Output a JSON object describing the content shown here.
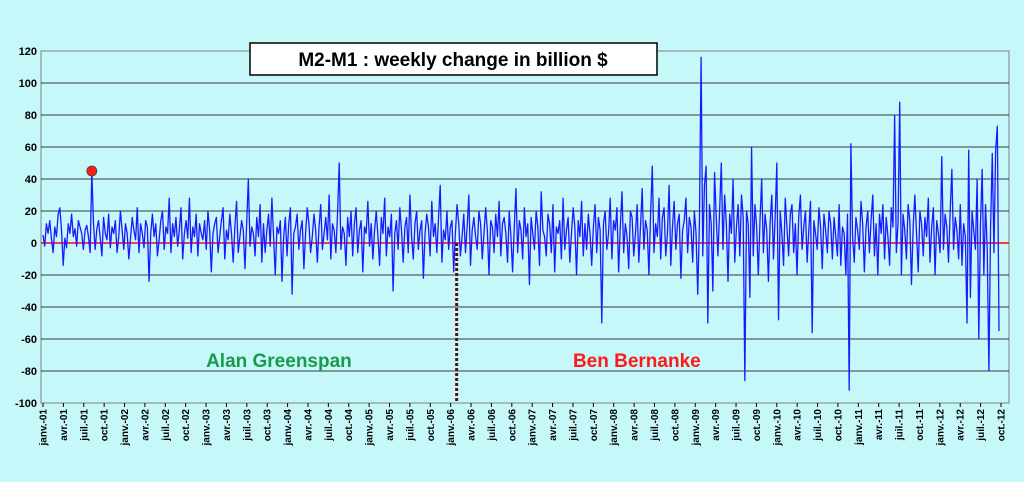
{
  "chart_data": {
    "type": "line",
    "title": "M2-M1  : weekly change in billion $",
    "ylim": [
      -100,
      120
    ],
    "y_ticks": [
      "120",
      "100",
      "80",
      "60",
      "40",
      "20",
      "0",
      "-20",
      "-40",
      "-60",
      "-80",
      "-100"
    ],
    "x_tick_labels": [
      "janv.-01",
      "avr.-01",
      "juil.-01",
      "oct.-01",
      "janv.-02",
      "avr.-02",
      "juil.-02",
      "oct.-02",
      "janv.-03",
      "avr.-03",
      "juil.-03",
      "oct.-03",
      "janv.-04",
      "avr.-04",
      "juil.-04",
      "oct.-04",
      "janv.-05",
      "avr.-05",
      "juil.-05",
      "oct.-05",
      "janv.-06",
      "avr.-06",
      "juil.-06",
      "oct.-06",
      "janv.-07",
      "avr.-07",
      "juil.-07",
      "oct.-07",
      "janv.-08",
      "avr.-08",
      "juil.-08",
      "oct.-08",
      "janv.-09",
      "avr.-09",
      "juil.-09",
      "oct.-09",
      "janv.-10",
      "avr.-10",
      "juil.-10",
      "oct.-10",
      "janv.-11",
      "avr.-11",
      "juil.-11",
      "oct.-11",
      "janv.-12",
      "avr.-12",
      "juil.-12",
      "oct.-12"
    ],
    "x_start": "2001-01",
    "grid": true,
    "zero_line_color": "#ff0000",
    "series_color": "#1a1aff",
    "series": [
      {
        "values": [
          5,
          -2,
          12,
          6,
          14,
          3,
          -6,
          10,
          4,
          18,
          22,
          8,
          -14,
          3,
          -3,
          12,
          6,
          18,
          4,
          9,
          -2,
          14,
          10,
          6,
          -4,
          8,
          11,
          4,
          -6,
          45,
          12,
          -4,
          9,
          14,
          3,
          -8,
          16,
          6,
          2,
          18,
          -3,
          10,
          6,
          14,
          -6,
          4,
          20,
          8,
          -4,
          12,
          6,
          -10,
          3,
          16,
          8,
          2,
          22,
          -6,
          12,
          6,
          -3,
          14,
          10,
          -24,
          6,
          18,
          4,
          12,
          -8,
          2,
          14,
          20,
          -4,
          10,
          6,
          28,
          -6,
          12,
          4,
          16,
          -2,
          8,
          22,
          -10,
          6,
          14,
          3,
          28,
          -6,
          10,
          4,
          18,
          -8,
          12,
          6,
          2,
          14,
          -4,
          20,
          8,
          -18,
          6,
          12,
          16,
          -6,
          4,
          14,
          22,
          -10,
          8,
          2,
          18,
          6,
          -12,
          10,
          26,
          -6,
          4,
          14,
          8,
          -16,
          12,
          40,
          -2,
          10,
          6,
          -8,
          16,
          4,
          24,
          -12,
          12,
          -6,
          8,
          18,
          -2,
          28,
          4,
          -20,
          10,
          6,
          14,
          -24,
          4,
          16,
          -8,
          12,
          22,
          -32,
          6,
          10,
          18,
          -4,
          8,
          14,
          -16,
          6,
          22,
          12,
          -6,
          4,
          18,
          8,
          -12,
          10,
          24,
          -4,
          6,
          16,
          2,
          30,
          -10,
          12,
          8,
          -6,
          18,
          50,
          -4,
          10,
          6,
          -14,
          16,
          4,
          20,
          -8,
          12,
          22,
          -6,
          8,
          14,
          -18,
          10,
          6,
          26,
          -2,
          12,
          -10,
          8,
          20,
          4,
          -14,
          16,
          6,
          28,
          -8,
          10,
          4,
          18,
          -30,
          6,
          14,
          -4,
          22,
          8,
          -12,
          10,
          16,
          -6,
          30,
          4,
          -10,
          12,
          20,
          -4,
          8,
          14,
          -22,
          6,
          18,
          10,
          -8,
          26,
          4,
          12,
          -6,
          16,
          36,
          -12,
          8,
          2,
          20,
          -4,
          10,
          14,
          -18,
          6,
          24,
          12,
          -8,
          4,
          18,
          -6,
          10,
          30,
          -14,
          8,
          16,
          4,
          -4,
          20,
          12,
          -10,
          6,
          22,
          8,
          -20,
          14,
          10,
          -6,
          18,
          4,
          26,
          -8,
          12,
          16,
          6,
          -12,
          20,
          4,
          -18,
          10,
          34,
          -6,
          14,
          8,
          -10,
          22,
          4,
          12,
          -26,
          16,
          6,
          -4,
          20,
          10,
          -14,
          32,
          8,
          4,
          -8,
          18,
          12,
          -6,
          24,
          -18,
          10,
          6,
          14,
          -10,
          28,
          -4,
          8,
          16,
          -12,
          6,
          22,
          10,
          -20,
          14,
          4,
          26,
          -8,
          12,
          -4,
          18,
          6,
          -14,
          10,
          24,
          -6,
          16,
          8,
          -50,
          12,
          20,
          -4,
          6,
          28,
          -10,
          14,
          8,
          22,
          -18,
          10,
          32,
          -6,
          12,
          4,
          -16,
          20,
          16,
          -8,
          6,
          24,
          -12,
          10,
          34,
          -4,
          14,
          8,
          -20,
          18,
          48,
          -6,
          12,
          4,
          28,
          -10,
          16,
          22,
          -8,
          6,
          36,
          -14,
          10,
          26,
          -4,
          12,
          18,
          -22,
          8,
          14,
          28,
          -6,
          16,
          10,
          -12,
          20,
          6,
          -32,
          12,
          116,
          -8,
          36,
          48,
          -50,
          24,
          12,
          -30,
          44,
          16,
          -8,
          20,
          50,
          -4,
          30,
          12,
          -24,
          18,
          6,
          40,
          -12,
          10,
          24,
          -8,
          30,
          16,
          -86,
          20,
          12,
          -34,
          60,
          -8,
          24,
          10,
          -20,
          14,
          40,
          -6,
          18,
          8,
          -24,
          12,
          30,
          -10,
          16,
          50,
          -48,
          20,
          6,
          -14,
          28,
          10,
          -8,
          18,
          24,
          -6,
          12,
          -20,
          16,
          30,
          -4,
          10,
          20,
          -12,
          8,
          26,
          -56,
          14,
          6,
          -4,
          22,
          10,
          -16,
          18,
          8,
          -6,
          20,
          12,
          -10,
          16,
          4,
          -8,
          24,
          -14,
          10,
          6,
          -20,
          18,
          -92,
          62,
          4,
          -12,
          16,
          8,
          -4,
          26,
          12,
          -18,
          10,
          20,
          -6,
          14,
          30,
          -8,
          12,
          -20,
          18,
          6,
          24,
          -10,
          16,
          4,
          -14,
          22,
          10,
          80,
          -6,
          12,
          88,
          -20,
          18,
          8,
          -10,
          24,
          14,
          -26,
          10,
          30,
          6,
          -18,
          20,
          12,
          -8,
          16,
          4,
          28,
          -12,
          10,
          22,
          -20,
          14,
          6,
          -6,
          54,
          -4,
          18,
          10,
          -12,
          20,
          46,
          -4,
          16,
          8,
          -10,
          24,
          -14,
          12,
          4,
          -50,
          58,
          -34,
          20,
          8,
          -4,
          40,
          -60,
          12,
          46,
          -20,
          24,
          -4,
          -80,
          10,
          56,
          -6,
          58,
          73,
          -55
        ]
      }
    ],
    "markers": [
      {
        "x_index": 29,
        "value": 45,
        "color": "#ff1a1a"
      },
      {
        "x_index": 599,
        "value": 73,
        "color": "#ff1a1a"
      },
      {
        "x_index": 590,
        "value": -60,
        "color": "#1a9b4b"
      },
      {
        "x_index": 595,
        "value": -80,
        "color": "#1a9b4b"
      },
      {
        "x_index": 600,
        "value": -55,
        "color": "#1a9b4b"
      }
    ],
    "divider": {
      "x_label": "janv.-06",
      "color": "#5a1010"
    },
    "annotations": [
      {
        "text": "Alan Greenspan",
        "color": "#1a9b4b",
        "anchor": "janv.-03",
        "y": -73
      },
      {
        "text": "Ben Bernanke",
        "color": "#ff1a1a",
        "anchor": "juil.-07",
        "y": -73
      }
    ]
  }
}
